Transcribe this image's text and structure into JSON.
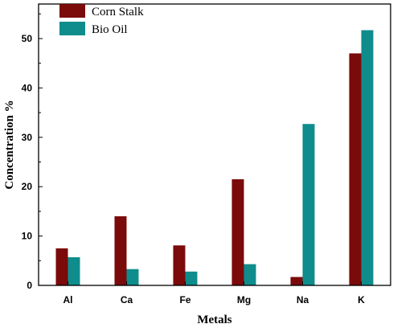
{
  "chart_data": {
    "type": "bar",
    "title": "",
    "xlabel": "Metals",
    "ylabel": "Concentration %",
    "categories": [
      "Al",
      "Ca",
      "Fe",
      "Mg",
      "Na",
      "K"
    ],
    "series": [
      {
        "name": "Corn Stalk",
        "color": "#7b0a0a",
        "values": [
          7.5,
          14.0,
          8.1,
          21.5,
          1.7,
          47.0
        ]
      },
      {
        "name": "Bio Oil",
        "color": "#0f8c8c",
        "values": [
          5.7,
          3.3,
          2.8,
          4.3,
          32.7,
          51.7
        ]
      }
    ],
    "ylim": [
      0,
      57
    ],
    "yticks": [
      0,
      10,
      20,
      30,
      40,
      50
    ],
    "grid": false,
    "legend_position": "top-left"
  }
}
